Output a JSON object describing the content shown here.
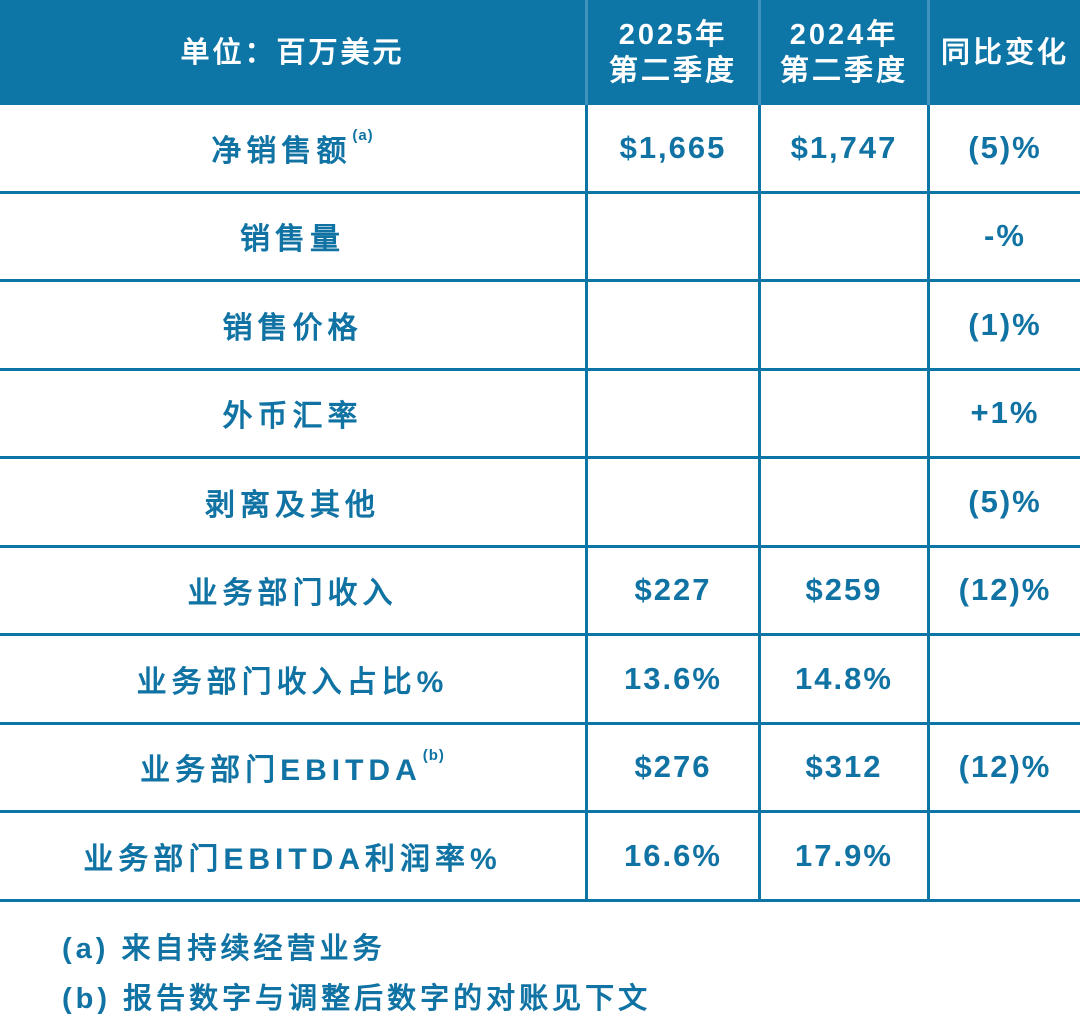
{
  "colors": {
    "header_bg": "#0E76A6",
    "header_divider": "#3F93BC",
    "accent_text": "#1073A3",
    "grid_line": "#0B76A6",
    "background": "#FFFFFF"
  },
  "chart_data": {
    "type": "table",
    "title": "",
    "unit_header": "单位：百万美元",
    "columns": [
      {
        "line1": "2025年",
        "line2": "第二季度"
      },
      {
        "line1": "2024年",
        "line2": "第二季度"
      },
      {
        "line1": "同比变化",
        "line2": ""
      }
    ],
    "rows": [
      {
        "label": "净销售额",
        "sup": "(a)",
        "q2_2025": "$1,665",
        "q2_2024": "$1,747",
        "yoy": "(5)%"
      },
      {
        "label": "销售量",
        "sup": "",
        "q2_2025": "",
        "q2_2024": "",
        "yoy": "-%"
      },
      {
        "label": "销售价格",
        "sup": "",
        "q2_2025": "",
        "q2_2024": "",
        "yoy": "(1)%"
      },
      {
        "label": "外币汇率",
        "sup": "",
        "q2_2025": "",
        "q2_2024": "",
        "yoy": "+1%"
      },
      {
        "label": "剥离及其他",
        "sup": "",
        "q2_2025": "",
        "q2_2024": "",
        "yoy": "(5)%"
      },
      {
        "label": "业务部门收入",
        "sup": "",
        "q2_2025": "$227",
        "q2_2024": "$259",
        "yoy": "(12)%"
      },
      {
        "label": "业务部门收入占比%",
        "sup": "",
        "q2_2025": "13.6%",
        "q2_2024": "14.8%",
        "yoy": ""
      },
      {
        "label": "业务部门EBITDA",
        "sup": "(b)",
        "q2_2025": "$276",
        "q2_2024": "$312",
        "yoy": "(12)%"
      },
      {
        "label": "业务部门EBITDA利润率%",
        "sup": "",
        "q2_2025": "16.6%",
        "q2_2024": "17.9%",
        "yoy": ""
      }
    ]
  },
  "footnotes": [
    "(a) 来自持续经营业务",
    "(b) 报告数字与调整后数字的对账见下文"
  ]
}
